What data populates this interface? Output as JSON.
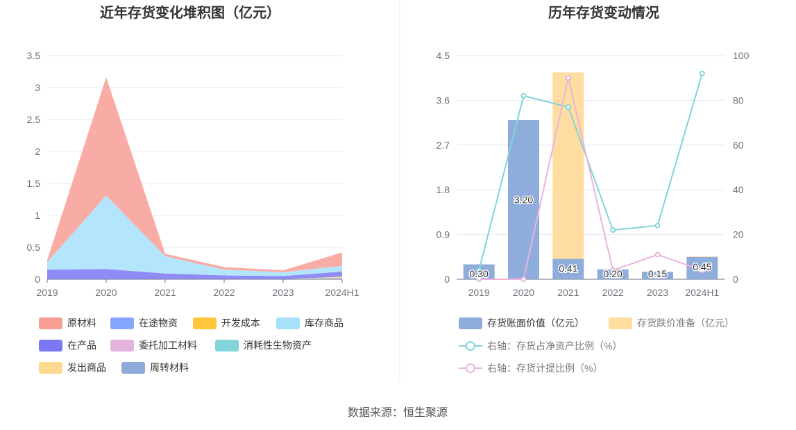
{
  "source": "数据来源：恒生聚源",
  "chart_data": [
    {
      "type": "area",
      "title": "近年存货变化堆积图（亿元）",
      "x": [
        "2019",
        "2020",
        "2021",
        "2022",
        "2023",
        "2024H1"
      ],
      "y_ticks": [
        "0",
        "0.5",
        "1",
        "1.5",
        "2",
        "2.5",
        "3",
        "3.5"
      ],
      "ylim": [
        0,
        3.5
      ],
      "stacked": true,
      "grid": true,
      "legend_position": "bottom",
      "series": [
        {
          "name": "原材料",
          "color": "#f89e95",
          "values": [
            0.03,
            1.85,
            0.04,
            0.04,
            0.03,
            0.21
          ]
        },
        {
          "name": "在途物资",
          "color": "#85a5ff",
          "values": [
            0,
            0,
            0,
            0,
            0,
            0
          ]
        },
        {
          "name": "开发成本",
          "color": "#ffc53d",
          "values": [
            0,
            0,
            0,
            0,
            0,
            0
          ]
        },
        {
          "name": "库存商品",
          "color": "#a6e0fb",
          "values": [
            0.12,
            1.15,
            0.27,
            0.09,
            0.06,
            0.09
          ]
        },
        {
          "name": "在产品",
          "color": "#7b78f5",
          "values": [
            0.15,
            0.16,
            0.09,
            0.06,
            0.05,
            0.08
          ]
        },
        {
          "name": "委托加工材料",
          "color": "#e5b4dc",
          "values": [
            0,
            0,
            0,
            0,
            0,
            0
          ]
        },
        {
          "name": "消耗性生物资产",
          "color": "#82d4d9",
          "values": [
            0,
            0,
            0,
            0,
            0,
            0
          ]
        },
        {
          "name": "发出商品",
          "color": "#ffd98f",
          "values": [
            0,
            0,
            0,
            0,
            0,
            0.02
          ]
        },
        {
          "name": "周转材料",
          "color": "#8eaad8",
          "values": [
            0,
            0,
            0,
            0,
            0,
            0.02
          ]
        }
      ]
    },
    {
      "type": "bar",
      "title": "历年存货变动情况",
      "x": [
        "2019",
        "2020",
        "2021",
        "2022",
        "2023",
        "2024H1"
      ],
      "y_left_ticks": [
        "0",
        "0.9",
        "1.8",
        "2.7",
        "3.6",
        "4.5"
      ],
      "y_left_lim": [
        0,
        4.5
      ],
      "y_right_ticks": [
        "0",
        "20",
        "40",
        "60",
        "80",
        "100"
      ],
      "y_right_lim": [
        0,
        100
      ],
      "grid": true,
      "legend_position": "bottom",
      "bars": [
        {
          "name": "存货账面价值（亿元）",
          "color": "#8eaddb",
          "values": [
            0.3,
            3.2,
            0.41,
            0.2,
            0.15,
            0.45
          ],
          "labels": [
            "0.30",
            "3.20",
            "0.41",
            "0.20",
            "0.15",
            "0.45"
          ]
        },
        {
          "name": "存货跌价准备（亿元）",
          "color": "#ffdca0",
          "values": [
            0.0,
            0.0,
            3.75,
            0.0,
            0.0,
            0.01
          ]
        }
      ],
      "lines": [
        {
          "name": "右轴：存货占净资产比例（%）",
          "color": "#82d4d9",
          "values": [
            4,
            82,
            77,
            22,
            24,
            92
          ]
        },
        {
          "name": "右轴：存货计提比例（%）",
          "color": "#e9b4dd",
          "values": [
            0,
            0,
            90,
            4,
            11,
            4
          ]
        }
      ]
    }
  ]
}
